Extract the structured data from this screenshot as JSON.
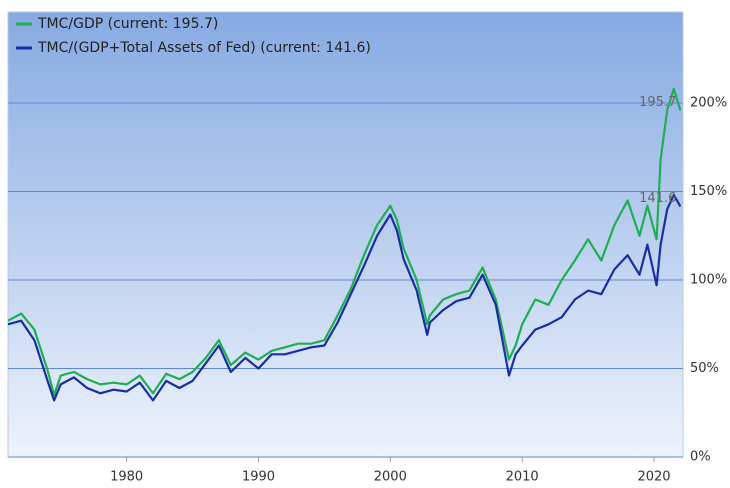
{
  "chart_data": {
    "type": "line",
    "x": [
      1971,
      1972,
      1973,
      1974,
      1974.5,
      1975,
      1976,
      1977,
      1978,
      1979,
      1980,
      1981,
      1982,
      1983,
      1984,
      1985,
      1986,
      1987,
      1987.9,
      1989,
      1990,
      1991,
      1992,
      1993,
      1994,
      1995,
      1996,
      1997,
      1998,
      1999,
      2000,
      2000.5,
      2001,
      2002,
      2002.8,
      2003,
      2004,
      2005,
      2006,
      2007,
      2008,
      2009,
      2009.5,
      2010,
      2011,
      2012,
      2013,
      2014,
      2015,
      2016,
      2017,
      2018,
      2018.9,
      2019.5,
      2020.2,
      2020.5,
      2021,
      2021.5,
      2022
    ],
    "series": [
      {
        "name": "TMC/GDP (current: 195.7)",
        "color": "#1fae52",
        "values": [
          77,
          81,
          72,
          49,
          35,
          46,
          48,
          44,
          41,
          42,
          41,
          46,
          36,
          47,
          44,
          48,
          56,
          66,
          52,
          59,
          55,
          60,
          62,
          64,
          64,
          66,
          80,
          95,
          114,
          131,
          142,
          134,
          118,
          100,
          75,
          80,
          89,
          92,
          94,
          107,
          89,
          55,
          63,
          75,
          89,
          86,
          100,
          111,
          123,
          111,
          131,
          145,
          125,
          142,
          123,
          168,
          196,
          208,
          195.7
        ]
      },
      {
        "name": "TMC/(GDP+Total Assets of Fed) (current: 141.6)",
        "color": "#1a2ea3",
        "values": [
          75,
          77,
          66,
          43,
          32,
          41,
          45,
          39,
          36,
          38,
          37,
          42,
          32,
          43,
          39,
          43,
          53,
          63,
          48,
          56,
          50,
          58,
          58,
          60,
          62,
          63,
          76,
          92,
          108,
          125,
          137,
          128,
          112,
          94,
          69,
          76,
          83,
          88,
          90,
          103,
          86,
          46,
          58,
          63,
          72,
          75,
          79,
          89,
          94,
          92,
          106,
          114,
          103,
          120,
          97,
          120,
          140,
          148,
          141.6
        ]
      }
    ],
    "xlim": [
      1971,
      2022.2
    ],
    "xticks": [
      1980,
      1990,
      2000,
      2010,
      2020
    ],
    "ylim": [
      0,
      250
    ],
    "yticks": [
      {
        "value": 0,
        "label": "0%"
      },
      {
        "value": 50,
        "label": "50%"
      },
      {
        "value": 100,
        "label": "100%"
      },
      {
        "value": 150,
        "label": "150%"
      },
      {
        "value": 200,
        "label": "200%"
      }
    ],
    "grid": true,
    "legend": "top-left"
  }
}
